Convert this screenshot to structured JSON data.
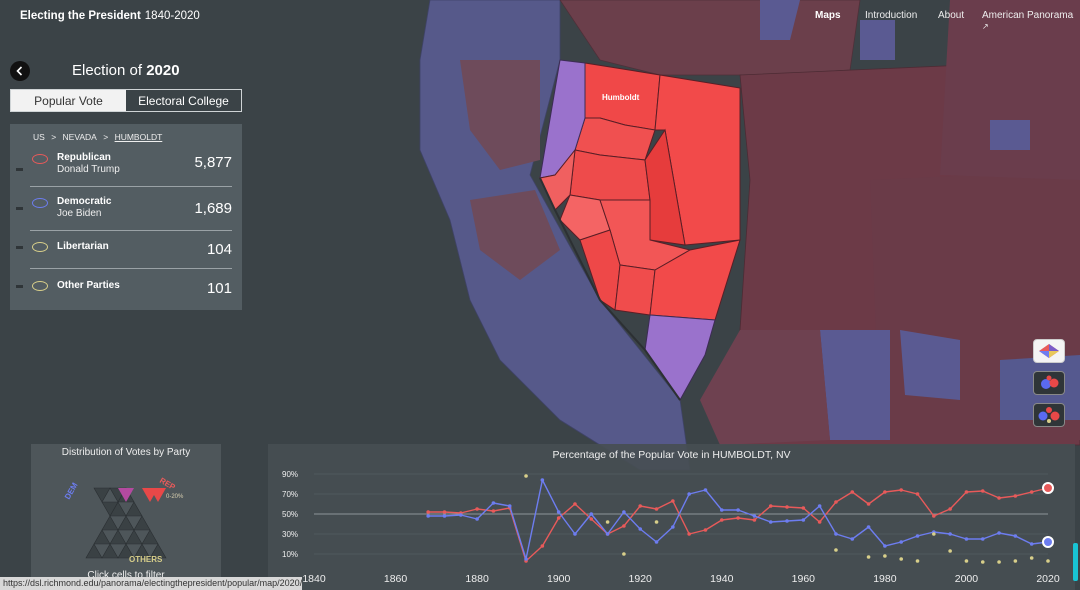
{
  "app": {
    "title": "Electing the President",
    "years": "1840-2020"
  },
  "nav": [
    "Maps",
    "Introduction",
    "About",
    "American Panorama"
  ],
  "sidebar": {
    "election_prefix": "Election of",
    "election_year": "2020",
    "tabs": [
      "Popular Vote",
      "Electoral College"
    ],
    "breadcrumb": [
      "US",
      ">",
      "NEVADA",
      ">",
      "HUMBOLDT"
    ],
    "candidates": [
      {
        "party": "Republican",
        "name": "Donald Trump",
        "votes": "5,877",
        "color": "#e85a5a"
      },
      {
        "party": "Democratic",
        "name": "Joe Biden",
        "votes": "1,689",
        "color": "#6d7df0"
      },
      {
        "party": "Libertarian",
        "name": "",
        "votes": "104",
        "color": "#d8cf8a"
      },
      {
        "party": "Other Parties",
        "name": "",
        "votes": "101",
        "color": "#d8cf8a"
      }
    ]
  },
  "map": {
    "county_label": "Humboldt"
  },
  "distribution": {
    "title": "Distribution of Votes by Party",
    "dem_label": "DEM",
    "rep_label": "REP",
    "others_label": "OTHERS",
    "pct_label": "0-20%",
    "footer": "Click cells to filter"
  },
  "timeseries": {
    "title": "Percentage of the Popular Vote in HUMBOLDT, NV",
    "y_ticks": [
      "90%",
      "70%",
      "50%",
      "30%",
      "10%"
    ],
    "x_ticks": [
      "1840",
      "1860",
      "1880",
      "1900",
      "1920",
      "1940",
      "1960",
      "1980",
      "2000",
      "2020"
    ]
  },
  "chart_data": {
    "type": "line",
    "title": "Percentage of the Popular Vote in HUMBOLDT, NV",
    "xlabel": "",
    "ylabel": "",
    "ylim": [
      0,
      100
    ],
    "xlim": [
      1840,
      2020
    ],
    "grid": true,
    "x": [
      1868,
      1872,
      1876,
      1880,
      1884,
      1888,
      1892,
      1896,
      1900,
      1904,
      1908,
      1912,
      1916,
      1920,
      1924,
      1928,
      1932,
      1936,
      1940,
      1944,
      1948,
      1952,
      1956,
      1960,
      1964,
      1968,
      1972,
      1976,
      1980,
      1984,
      1988,
      1992,
      1996,
      2000,
      2004,
      2008,
      2012,
      2016,
      2020
    ],
    "series": [
      {
        "values": [
          52,
          52,
          51,
          55,
          53,
          56,
          3,
          18,
          46,
          60,
          45,
          30,
          38,
          58,
          55,
          63,
          30,
          34,
          44,
          46,
          44,
          58,
          57,
          56,
          42,
          62,
          72,
          60,
          72,
          74,
          70,
          48,
          55,
          72,
          73,
          66,
          68,
          72,
          76
        ],
        "color": "#e85a5a"
      },
      {
        "values": [
          48,
          48,
          49,
          45,
          61,
          58,
          5,
          84,
          52,
          30,
          50,
          30,
          52,
          35,
          22,
          37,
          70,
          74,
          54,
          54,
          48,
          42,
          43,
          44,
          58,
          30,
          25,
          37,
          18,
          22,
          28,
          32,
          30,
          25,
          25,
          31,
          28,
          20,
          22
        ],
        "color": "#6d7df0"
      },
      {
        "values": [
          null,
          null,
          null,
          null,
          null,
          null,
          88,
          null,
          null,
          null,
          null,
          42,
          10,
          null,
          42,
          null,
          null,
          null,
          null,
          null,
          null,
          null,
          null,
          null,
          null,
          14,
          null,
          7,
          8,
          5,
          3,
          30,
          13,
          3,
          2,
          2,
          3,
          6,
          3
        ],
        "color": "#d8cf8a"
      }
    ]
  }
}
